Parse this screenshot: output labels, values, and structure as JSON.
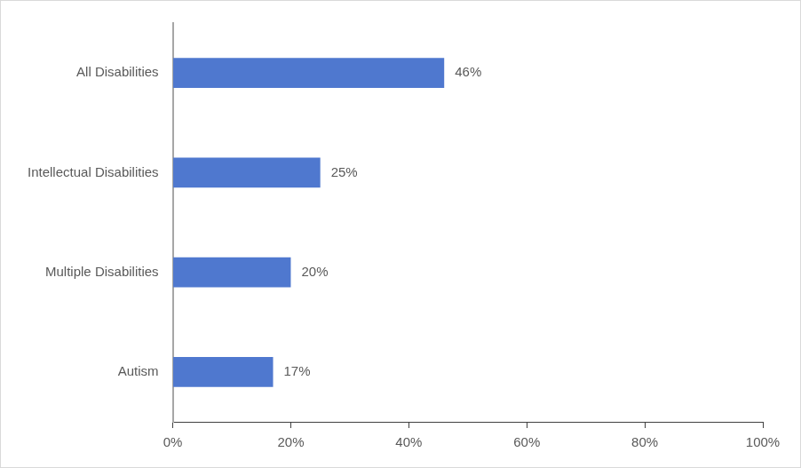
{
  "chart_data": {
    "type": "bar",
    "orientation": "horizontal",
    "categories": [
      "All Disabilities",
      "Intellectual Disabilities",
      "Multiple Disabilities",
      "Autism"
    ],
    "values": [
      46,
      25,
      20,
      17
    ],
    "value_labels": [
      "46%",
      "25%",
      "20%",
      "17%"
    ],
    "data_labels": true,
    "color": "#4f78cf",
    "xlim": [
      0,
      100
    ],
    "xticks": [
      {
        "value": 0,
        "label": "0%"
      },
      {
        "value": 20,
        "label": "20%"
      },
      {
        "value": 40,
        "label": "40%"
      },
      {
        "value": 60,
        "label": "60%"
      },
      {
        "value": 80,
        "label": "80%"
      },
      {
        "value": 100,
        "label": "100%"
      }
    ],
    "grid": false
  }
}
